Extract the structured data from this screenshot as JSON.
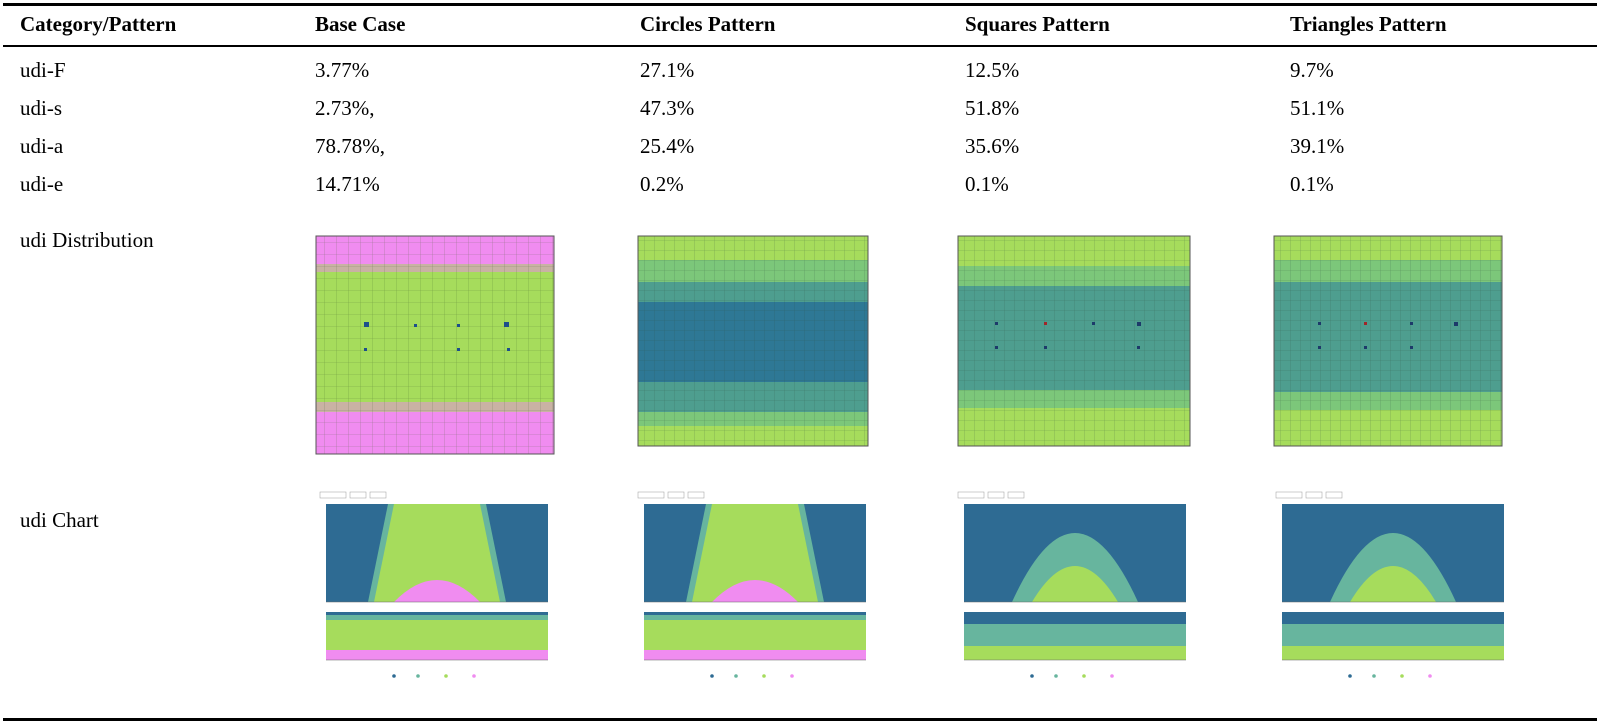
{
  "header": {
    "category": "Category/Pattern",
    "base": "Base Case",
    "circles": "Circles Pattern",
    "squares": "Squares Pattern",
    "triangles": "Triangles Pattern"
  },
  "rows": [
    {
      "label": "udi-F",
      "values": [
        "3.77%",
        "27.1%",
        "12.5%",
        "9.7%"
      ]
    },
    {
      "label": "udi-s",
      "values": [
        "2.73%,",
        "47.3%",
        "51.8%",
        "51.1%"
      ]
    },
    {
      "label": "udi-a",
      "values": [
        "78.78%,",
        "25.4%",
        "35.6%",
        "39.1%"
      ]
    },
    {
      "label": "udi-e",
      "values": [
        "14.71%",
        "0.2%",
        "0.1%",
        "0.1%"
      ]
    }
  ],
  "distribution_label": "udi Distribution",
  "chart_label": "udi Chart",
  "colors": {
    "falling": "#2e6b93",
    "supplemental": "#67b59e",
    "acceptable": "#a6dc5c",
    "excessive": "#f08cf0"
  },
  "chart_data": [
    {
      "type": "area",
      "pattern": "Base Case",
      "day_peak_acceptable": 100,
      "day_peak_excessive": 20,
      "annual_falling": 10,
      "annual_excessive": 10
    },
    {
      "type": "area",
      "pattern": "Circles Pattern",
      "day_peak_acceptable": 100,
      "day_peak_excessive": 20,
      "annual_falling": 10,
      "annual_excessive": 10
    },
    {
      "type": "area",
      "pattern": "Squares Pattern",
      "day_peak_supplemental": 75,
      "day_peak_acceptable": 38,
      "annual_falling": 25,
      "annual_acceptable": 25
    },
    {
      "type": "area",
      "pattern": "Triangles Pattern",
      "day_peak_supplemental": 75,
      "day_peak_acceptable": 38,
      "annual_falling": 25,
      "annual_acceptable": 25
    }
  ]
}
